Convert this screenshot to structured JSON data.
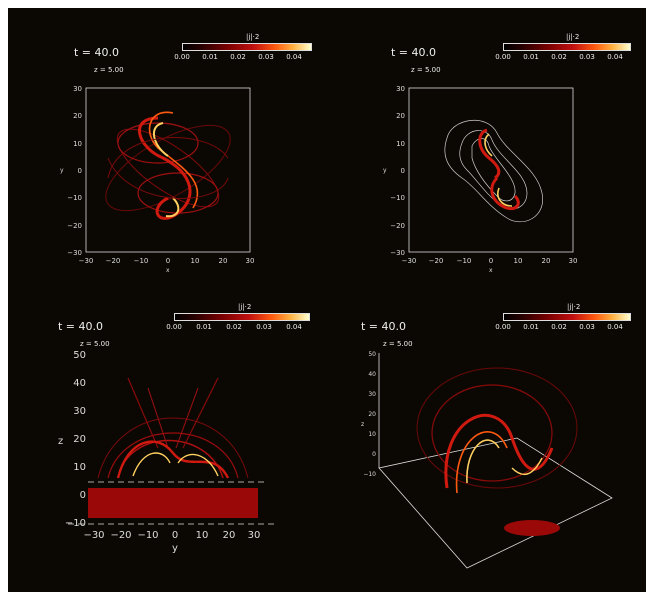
{
  "panels": [
    {
      "id": "top-left",
      "time_label": "t = 40.0",
      "z_label": "z = 5.00",
      "colorbar": {
        "label": "|j|·2",
        "ticks": [
          "0.00",
          "0.01",
          "0.02",
          "0.03",
          "0.04"
        ]
      },
      "x_ticks": [
        "−30",
        "−20",
        "−10",
        "0",
        "10",
        "20",
        "30"
      ],
      "y_ticks": [
        "30",
        "20",
        "10",
        "0",
        "−10",
        "−20",
        "−30"
      ],
      "xlabel": "x",
      "ylabel": "y"
    },
    {
      "id": "top-right",
      "time_label": "t = 40.0",
      "z_label": "z = 5.00",
      "colorbar": {
        "label": "|j|·2",
        "ticks": [
          "0.00",
          "0.01",
          "0.02",
          "0.03",
          "0.04"
        ]
      },
      "x_ticks": [
        "−30",
        "−20",
        "−10",
        "0",
        "10",
        "20",
        "30"
      ],
      "y_ticks": [
        "30",
        "20",
        "10",
        "0",
        "−10",
        "−20",
        "−30"
      ],
      "xlabel": "x",
      "ylabel": "y"
    },
    {
      "id": "bottom-left",
      "time_label": "t = 40.0",
      "z_label": "z = 5.00",
      "colorbar": {
        "label": "|j|·2",
        "ticks": [
          "0.00",
          "0.01",
          "0.02",
          "0.03",
          "0.04"
        ]
      },
      "x_ticks": [
        "−30",
        "−20",
        "−10",
        "0",
        "10",
        "20",
        "30"
      ],
      "z_ticks": [
        "50",
        "40",
        "30",
        "20",
        "10",
        "0",
        "−10"
      ],
      "xlabel": "y",
      "ylabel": "z"
    },
    {
      "id": "bottom-right",
      "time_label": "t = 40.0",
      "z_label": "z = 5.00",
      "colorbar": {
        "label": "|j|·2",
        "ticks": [
          "0.00",
          "0.01",
          "0.02",
          "0.03",
          "0.04"
        ]
      },
      "z_ticks": [
        "50",
        "40",
        "30",
        "20",
        "10",
        "0",
        "−10"
      ],
      "zlabel": "z"
    }
  ],
  "colors": {
    "background": "#0b0803",
    "line_dark": "#8a0a0a",
    "line_mid": "#d01a10",
    "line_hot": "#ffd060",
    "axis": "#dddddd"
  }
}
